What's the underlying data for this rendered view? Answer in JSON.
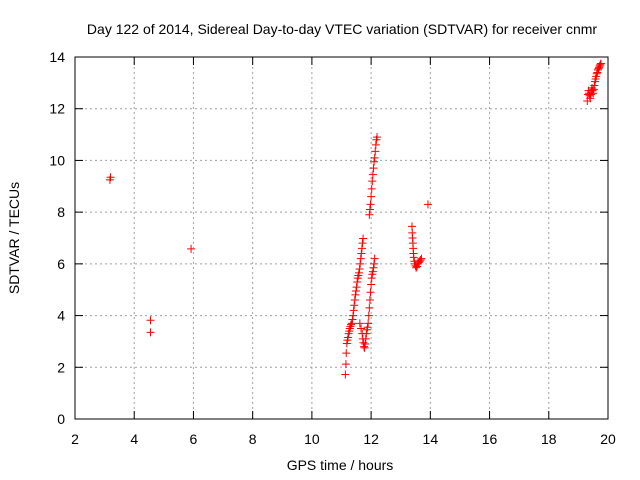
{
  "chart_data": {
    "type": "scatter",
    "title": "Day 122 of 2014, Sidereal Day-to-day VTEC variation (SDTVAR) for receiver cnmr",
    "xlabel": "GPS time / hours",
    "ylabel": "SDTVAR / TECUs",
    "xlim": [
      2,
      20
    ],
    "ylim": [
      0,
      14
    ],
    "x_ticks": [
      2,
      4,
      6,
      8,
      10,
      12,
      14,
      16,
      18,
      20
    ],
    "y_ticks": [
      0,
      2,
      4,
      6,
      8,
      10,
      12,
      14
    ],
    "grid": true,
    "marker": "+",
    "color": "#ff0000",
    "series": [
      {
        "name": "SDTVAR",
        "points": [
          [
            3.18,
            9.25
          ],
          [
            3.2,
            9.35
          ],
          [
            4.55,
            3.82
          ],
          [
            4.55,
            3.35
          ],
          [
            5.92,
            6.58
          ],
          [
            11.13,
            1.72
          ],
          [
            11.15,
            2.12
          ],
          [
            11.16,
            2.55
          ],
          [
            11.18,
            2.92
          ],
          [
            11.2,
            3.05
          ],
          [
            11.22,
            3.15
          ],
          [
            11.24,
            3.3
          ],
          [
            11.26,
            3.4
          ],
          [
            11.28,
            3.5
          ],
          [
            11.3,
            3.58
          ],
          [
            11.32,
            3.65
          ],
          [
            11.35,
            3.7
          ],
          [
            11.37,
            3.85
          ],
          [
            11.39,
            4.0
          ],
          [
            11.41,
            4.2
          ],
          [
            11.43,
            4.4
          ],
          [
            11.45,
            4.6
          ],
          [
            11.47,
            4.8
          ],
          [
            11.49,
            4.95
          ],
          [
            11.51,
            5.1
          ],
          [
            11.53,
            5.3
          ],
          [
            11.55,
            5.45
          ],
          [
            11.57,
            5.55
          ],
          [
            11.59,
            5.65
          ],
          [
            11.61,
            5.8
          ],
          [
            11.63,
            6.0
          ],
          [
            11.65,
            6.2
          ],
          [
            11.67,
            6.4
          ],
          [
            11.69,
            6.6
          ],
          [
            11.71,
            6.8
          ],
          [
            11.73,
            6.98
          ],
          [
            11.62,
            3.7
          ],
          [
            11.66,
            3.5
          ],
          [
            11.7,
            3.3
          ],
          [
            11.72,
            3.1
          ],
          [
            11.74,
            2.95
          ],
          [
            11.76,
            2.8
          ],
          [
            11.78,
            2.75
          ],
          [
            11.8,
            2.9
          ],
          [
            11.82,
            3.1
          ],
          [
            11.84,
            3.3
          ],
          [
            11.86,
            3.45
          ],
          [
            11.88,
            3.55
          ],
          [
            11.9,
            3.7
          ],
          [
            11.92,
            4.0
          ],
          [
            11.94,
            4.3
          ],
          [
            11.96,
            4.6
          ],
          [
            11.98,
            4.9
          ],
          [
            12.0,
            5.2
          ],
          [
            12.02,
            5.45
          ],
          [
            12.04,
            5.6
          ],
          [
            12.06,
            5.7
          ],
          [
            12.08,
            5.85
          ],
          [
            12.1,
            6.0
          ],
          [
            12.12,
            6.2
          ],
          [
            11.94,
            7.9
          ],
          [
            11.96,
            8.1
          ],
          [
            11.98,
            8.3
          ],
          [
            12.0,
            8.6
          ],
          [
            12.02,
            8.9
          ],
          [
            12.04,
            9.2
          ],
          [
            12.06,
            9.45
          ],
          [
            12.08,
            9.7
          ],
          [
            12.1,
            9.95
          ],
          [
            12.12,
            10.1
          ],
          [
            12.14,
            10.35
          ],
          [
            12.16,
            10.6
          ],
          [
            12.18,
            10.8
          ],
          [
            12.2,
            10.9
          ],
          [
            13.38,
            7.45
          ],
          [
            13.39,
            7.2
          ],
          [
            13.4,
            7.0
          ],
          [
            13.41,
            6.8
          ],
          [
            13.42,
            6.6
          ],
          [
            13.43,
            6.4
          ],
          [
            13.44,
            6.25
          ],
          [
            13.46,
            6.1
          ],
          [
            13.48,
            6.0
          ],
          [
            13.5,
            5.92
          ],
          [
            13.52,
            5.85
          ],
          [
            13.55,
            5.9
          ],
          [
            13.58,
            6.0
          ],
          [
            13.61,
            6.05
          ],
          [
            13.64,
            6.1
          ],
          [
            13.67,
            6.15
          ],
          [
            13.7,
            6.2
          ],
          [
            13.92,
            8.3
          ],
          [
            19.3,
            12.3
          ],
          [
            19.32,
            12.55
          ],
          [
            19.34,
            12.7
          ],
          [
            19.36,
            12.6
          ],
          [
            19.38,
            12.5
          ],
          [
            19.4,
            12.4
          ],
          [
            19.42,
            12.55
          ],
          [
            19.44,
            12.7
          ],
          [
            19.46,
            12.8
          ],
          [
            19.48,
            12.7
          ],
          [
            19.5,
            12.6
          ],
          [
            19.52,
            12.75
          ],
          [
            19.54,
            12.9
          ],
          [
            19.56,
            13.05
          ],
          [
            19.58,
            13.15
          ],
          [
            19.6,
            13.25
          ],
          [
            19.62,
            13.35
          ],
          [
            19.64,
            13.4
          ],
          [
            19.66,
            13.5
          ],
          [
            19.68,
            13.55
          ],
          [
            19.7,
            13.6
          ],
          [
            19.72,
            13.65
          ],
          [
            19.74,
            13.7
          ],
          [
            19.76,
            13.75
          ]
        ]
      }
    ]
  }
}
